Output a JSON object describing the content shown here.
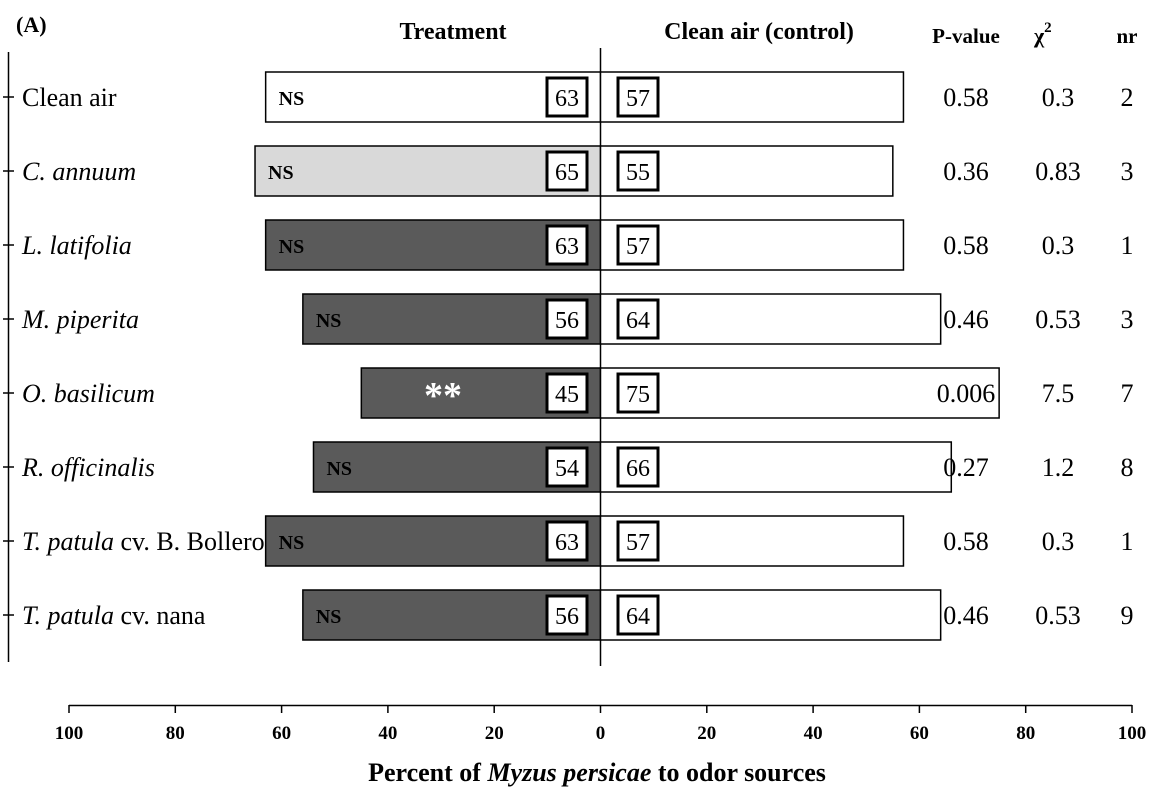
{
  "chart_data": {
    "type": "bar",
    "panel_label": "(A)",
    "xlabel_parts": [
      {
        "text": "Percent of ",
        "italic": false
      },
      {
        "text": "Myzus persicae",
        "italic": true
      },
      {
        "text": " to odor sources",
        "italic": false
      }
    ],
    "xlim": [
      -100,
      100
    ],
    "x_ticks": [
      {
        "value": -100,
        "label": "100"
      },
      {
        "value": -80,
        "label": "80"
      },
      {
        "value": -60,
        "label": "60"
      },
      {
        "value": -40,
        "label": "40"
      },
      {
        "value": -20,
        "label": "20"
      },
      {
        "value": 0,
        "label": "0"
      },
      {
        "value": 20,
        "label": "20"
      },
      {
        "value": 40,
        "label": "40"
      },
      {
        "value": 60,
        "label": "60"
      },
      {
        "value": 80,
        "label": "80"
      },
      {
        "value": 100,
        "label": "100"
      }
    ],
    "headers": {
      "treatment": "Treatment",
      "control": "Clean air (control)",
      "pvalue": "P-value",
      "chi_symbol": "χ",
      "chi_sup": "2",
      "nr": "nr"
    },
    "colors": {
      "light": "#d9d9d9",
      "dark": "#5a5a5a",
      "control": "#ffffff",
      "outline": "#000000"
    },
    "rows": [
      {
        "label_parts": [
          {
            "text": "Clean air",
            "italic": false
          }
        ],
        "treatment": 63,
        "control": 57,
        "fill": "control",
        "sig": "NS",
        "sig_white": false,
        "pvalue": "0.58",
        "chi2": "0.3",
        "nr": "2"
      },
      {
        "label_parts": [
          {
            "text": "C. annuum",
            "italic": true
          }
        ],
        "treatment": 65,
        "control": 55,
        "fill": "light",
        "sig": "NS",
        "sig_white": false,
        "pvalue": "0.36",
        "chi2": "0.83",
        "nr": "3"
      },
      {
        "label_parts": [
          {
            "text": "L. latifolia",
            "italic": true
          }
        ],
        "treatment": 63,
        "control": 57,
        "fill": "dark",
        "sig": "NS",
        "sig_white": false,
        "pvalue": "0.58",
        "chi2": "0.3",
        "nr": "1"
      },
      {
        "label_parts": [
          {
            "text": "M. piperita",
            "italic": true
          }
        ],
        "treatment": 56,
        "control": 64,
        "fill": "dark",
        "sig": "NS",
        "sig_white": false,
        "pvalue": "0.46",
        "chi2": "0.53",
        "nr": "3"
      },
      {
        "label_parts": [
          {
            "text": "O. basilicum",
            "italic": true
          }
        ],
        "treatment": 45,
        "control": 75,
        "fill": "dark",
        "sig": "**",
        "sig_white": true,
        "pvalue": "0.006",
        "chi2": "7.5",
        "nr": "7"
      },
      {
        "label_parts": [
          {
            "text": "R. officinalis",
            "italic": true
          }
        ],
        "treatment": 54,
        "control": 66,
        "fill": "dark",
        "sig": "NS",
        "sig_white": false,
        "pvalue": "0.27",
        "chi2": "1.2",
        "nr": "8"
      },
      {
        "label_parts": [
          {
            "text": "T. patula",
            "italic": true
          },
          {
            "text": " cv. B. Bollero",
            "italic": false
          }
        ],
        "treatment": 63,
        "control": 57,
        "fill": "dark",
        "sig": "NS",
        "sig_white": false,
        "pvalue": "0.58",
        "chi2": "0.3",
        "nr": "1"
      },
      {
        "label_parts": [
          {
            "text": "T. patula",
            "italic": true
          },
          {
            "text": " cv. nana",
            "italic": false
          }
        ],
        "treatment": 56,
        "control": 64,
        "fill": "dark",
        "sig": "NS",
        "sig_white": false,
        "pvalue": "0.46",
        "chi2": "0.53",
        "nr": "9"
      }
    ]
  }
}
